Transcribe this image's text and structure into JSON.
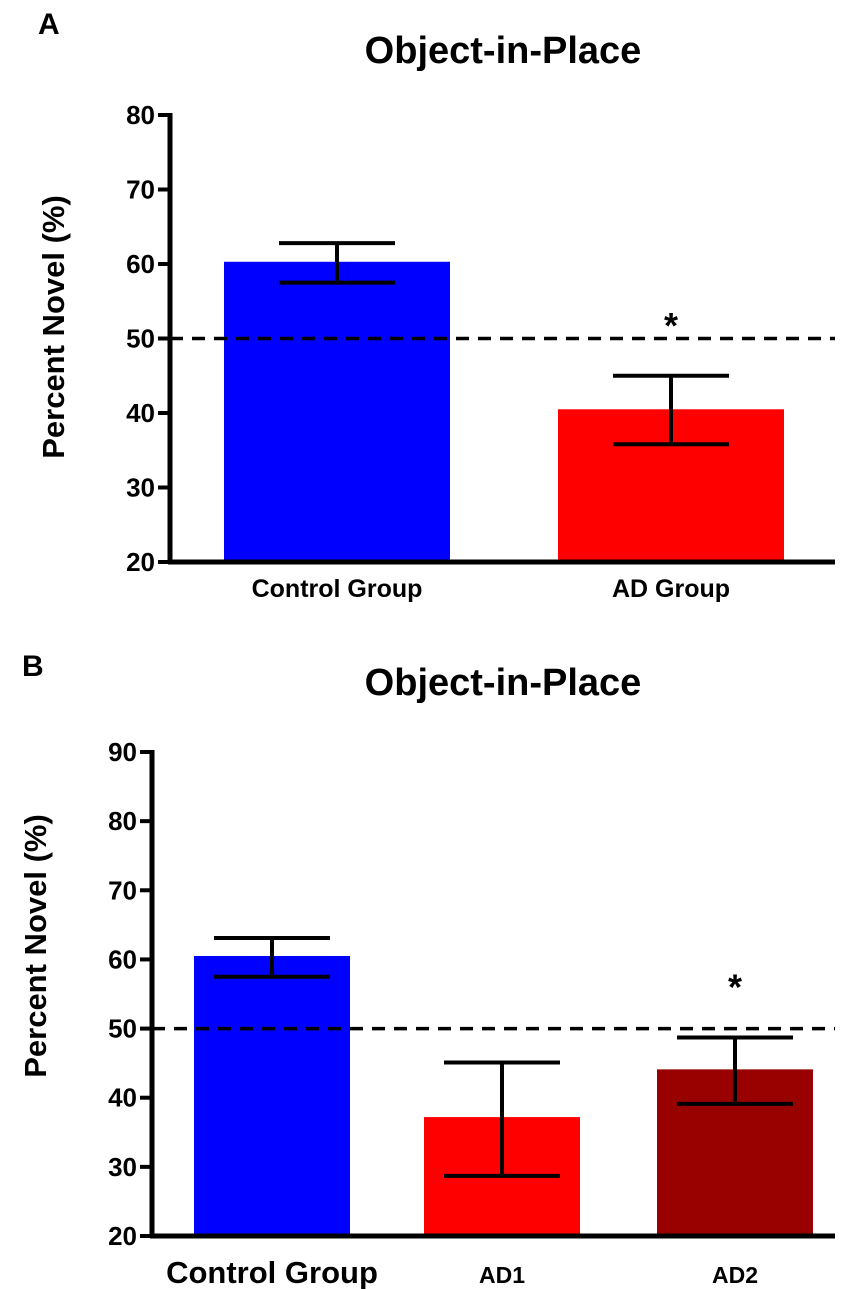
{
  "chart_data": [
    {
      "panel": "A",
      "type": "bar",
      "title": "Object-in-Place",
      "ylabel": "Percent Novel (%)",
      "xlabel": "",
      "ylim": [
        20,
        80
      ],
      "yticks": [
        "20",
        "30",
        "40",
        "50",
        "60",
        "70",
        "80"
      ],
      "reference_line": 50,
      "categories": [
        "Control Group",
        "AD Group"
      ],
      "values": [
        60.3,
        40.5
      ],
      "error_low": [
        57.5,
        35.8
      ],
      "error_high": [
        62.8,
        45.0
      ],
      "colors": [
        "#0000FF",
        "#FF0000"
      ],
      "annotations": [
        "",
        "*"
      ],
      "grid": false,
      "legend": "none"
    },
    {
      "panel": "B",
      "type": "bar",
      "title": "Object-in-Place",
      "ylabel": "Percent Novel (%)",
      "xlabel": "",
      "ylim": [
        20,
        90
      ],
      "yticks": [
        "20",
        "30",
        "40",
        "50",
        "60",
        "70",
        "80",
        "90"
      ],
      "reference_line": 50,
      "categories": [
        "Control Group",
        "AD1",
        "AD2"
      ],
      "values": [
        60.5,
        37.2,
        44.1
      ],
      "error_low": [
        57.5,
        28.7,
        39.1
      ],
      "error_high": [
        63.1,
        45.1,
        48.7
      ],
      "colors": [
        "#0000FF",
        "#FF0000",
        "#990000"
      ],
      "annotations": [
        "",
        "",
        "*"
      ],
      "grid": false,
      "legend": "none"
    }
  ]
}
